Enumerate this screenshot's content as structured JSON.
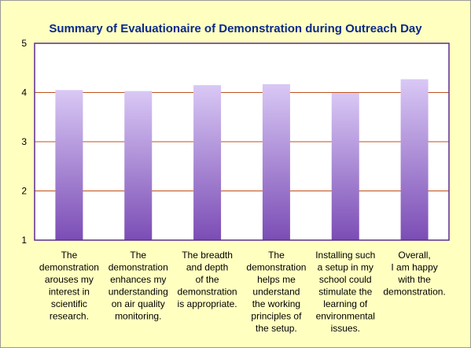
{
  "chart_data": {
    "type": "bar",
    "title": "Summary of Evaluationaire of Demonstration during Outreach Day",
    "xlabel": "",
    "ylabel": "",
    "ylim": [
      1,
      5
    ],
    "yticks": [
      "1",
      "2",
      "3",
      "4",
      "5"
    ],
    "grid": true,
    "categories": [
      [
        "The",
        "demonstration",
        "arouses my",
        "interest in",
        "scientific",
        "research."
      ],
      [
        "The",
        "demonstration",
        "enhances my",
        "understanding",
        "on air quality",
        "monitoring."
      ],
      [
        "The breadth",
        "and depth",
        "of the",
        "demonstration",
        "is appropriate."
      ],
      [
        "The",
        "demonstration",
        "helps me",
        "understand",
        "the working",
        "principles of",
        "the setup."
      ],
      [
        "Installing such",
        "a setup in my",
        "school could",
        "stimulate the",
        "learning of",
        "environmental",
        "issues."
      ],
      [
        "Overall,",
        "I am happy",
        "with the",
        "demonstration."
      ]
    ],
    "values": [
      4.05,
      4.03,
      4.15,
      4.17,
      3.99,
      4.27
    ]
  },
  "colors": {
    "background": "#ffffc0",
    "plot_area": "#ffffff",
    "plot_border": "#5b2c8f",
    "gridline": "#c0501c",
    "bar_top": "#d9c8f5",
    "bar_bottom": "#7b4db5",
    "title": "#0a2a8a",
    "text": "#000000"
  }
}
